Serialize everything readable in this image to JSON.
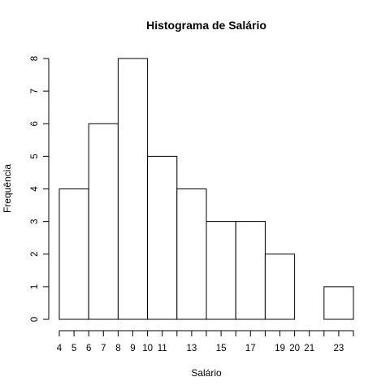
{
  "chart_data": {
    "type": "bar",
    "title": "Histograma de Salário",
    "xlabel": "Salário",
    "ylabel": "Frequência",
    "bins": [
      {
        "from": 4,
        "to": 6,
        "count": 4
      },
      {
        "from": 6,
        "to": 8,
        "count": 6
      },
      {
        "from": 8,
        "to": 10,
        "count": 8
      },
      {
        "from": 10,
        "to": 12,
        "count": 5
      },
      {
        "from": 12,
        "to": 14,
        "count": 4
      },
      {
        "from": 14,
        "to": 16,
        "count": 3
      },
      {
        "from": 16,
        "to": 18,
        "count": 3
      },
      {
        "from": 18,
        "to": 20,
        "count": 2
      },
      {
        "from": 20,
        "to": 22,
        "count": 0
      },
      {
        "from": 22,
        "to": 24,
        "count": 1
      }
    ],
    "xlim": [
      4,
      24
    ],
    "ylim": [
      0,
      8
    ],
    "x_ticks": [
      4,
      5,
      6,
      7,
      8,
      9,
      10,
      11,
      13,
      15,
      17,
      19,
      20,
      21,
      23
    ],
    "y_ticks": [
      0,
      1,
      2,
      3,
      4,
      5,
      6,
      7,
      8
    ],
    "grid": false,
    "bar_fill": "#ffffff",
    "bar_stroke": "#000000"
  }
}
